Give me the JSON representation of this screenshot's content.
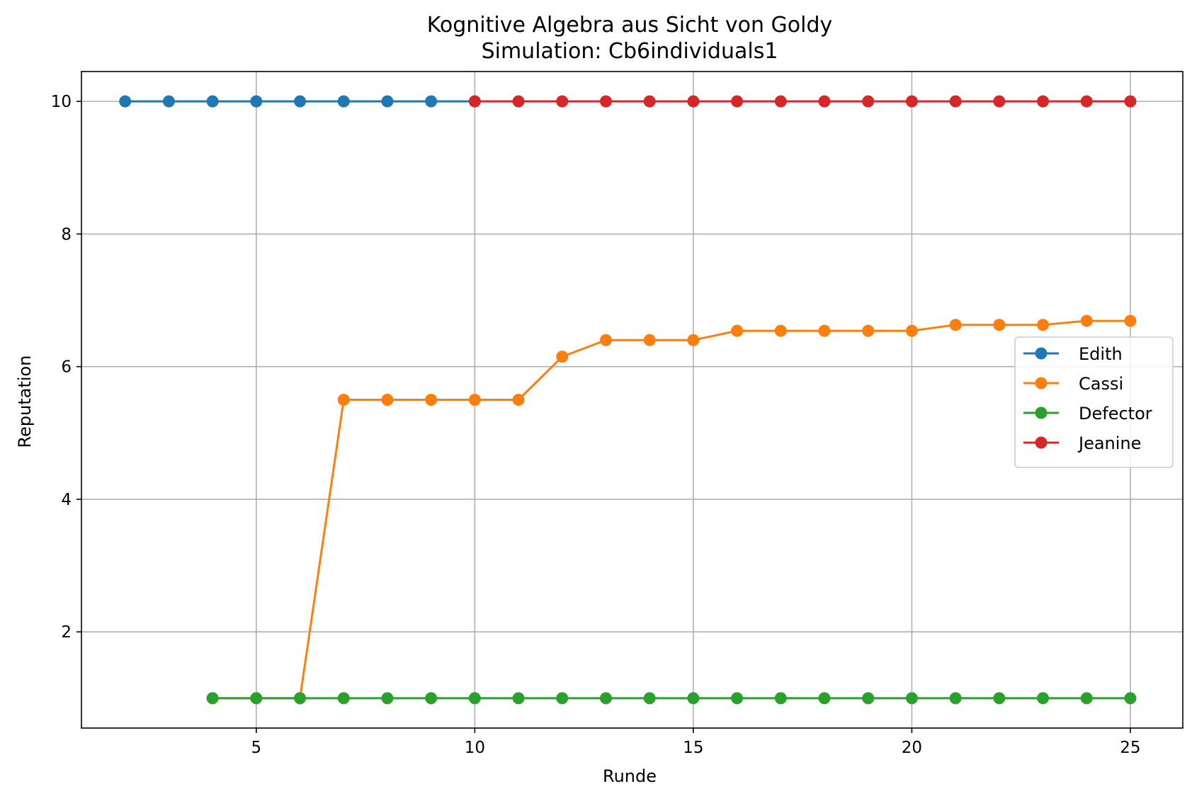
{
  "chart_data": {
    "type": "line",
    "title": "Kognitive Algebra aus Sicht von Goldy",
    "subtitle": "Simulation: Cb6individuals1",
    "xlabel": "Runde",
    "ylabel": "Reputation",
    "xlim": [
      1,
      26.2
    ],
    "ylim": [
      0.55,
      10.45
    ],
    "xticks": [
      5,
      10,
      15,
      20,
      25
    ],
    "yticks": [
      2,
      4,
      6,
      8,
      10
    ],
    "grid": true,
    "legend_position": "center-right",
    "series": [
      {
        "name": "Edith",
        "color": "#1f77b4",
        "x": [
          2,
          3,
          4,
          5,
          6,
          7,
          8,
          9,
          10
        ],
        "y": [
          10,
          10,
          10,
          10,
          10,
          10,
          10,
          10,
          10
        ]
      },
      {
        "name": "Cassi",
        "color": "#ff7f0e",
        "x": [
          4,
          5,
          6,
          7,
          8,
          9,
          10,
          11,
          12,
          13,
          14,
          15,
          16,
          17,
          18,
          19,
          20,
          21,
          22,
          23,
          24,
          25
        ],
        "y": [
          1,
          1,
          1,
          5.5,
          5.5,
          5.5,
          5.5,
          5.5,
          6.15,
          6.4,
          6.4,
          6.4,
          6.54,
          6.54,
          6.54,
          6.54,
          6.54,
          6.63,
          6.63,
          6.63,
          6.69,
          6.69
        ]
      },
      {
        "name": "Defector",
        "color": "#2ca02c",
        "x": [
          4,
          5,
          6,
          7,
          8,
          9,
          10,
          11,
          12,
          13,
          14,
          15,
          16,
          17,
          18,
          19,
          20,
          21,
          22,
          23,
          24,
          25
        ],
        "y": [
          1,
          1,
          1,
          1,
          1,
          1,
          1,
          1,
          1,
          1,
          1,
          1,
          1,
          1,
          1,
          1,
          1,
          1,
          1,
          1,
          1,
          1
        ]
      },
      {
        "name": "Jeanine",
        "color": "#d62728",
        "x": [
          10,
          11,
          12,
          13,
          14,
          15,
          16,
          17,
          18,
          19,
          20,
          21,
          22,
          23,
          24,
          25
        ],
        "y": [
          10,
          10,
          10,
          10,
          10,
          10,
          10,
          10,
          10,
          10,
          10,
          10,
          10,
          10,
          10,
          10
        ]
      }
    ]
  }
}
